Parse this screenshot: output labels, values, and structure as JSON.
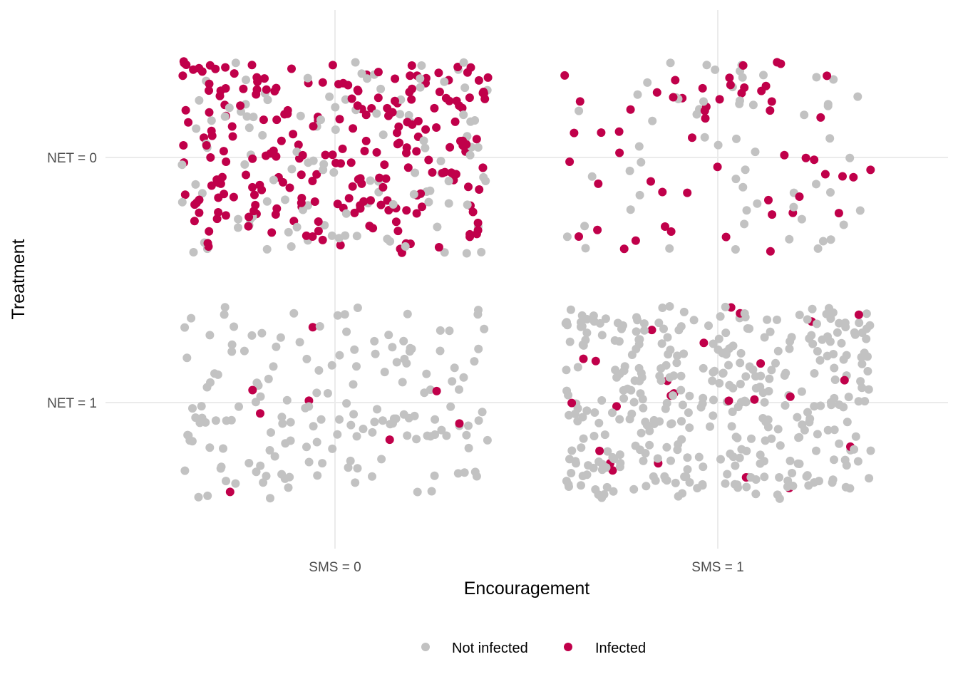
{
  "chart_data": {
    "type": "scatter",
    "title": "",
    "xlabel": "Encouragement",
    "ylabel": "Treatment",
    "x_categories": [
      "SMS = 0",
      "SMS = 1"
    ],
    "y_categories": [
      "NET = 0",
      "NET = 1"
    ],
    "jitter": true,
    "grid": "major",
    "legend": {
      "position": "bottom",
      "entries": [
        "Not infected",
        "Infected"
      ]
    },
    "colors": {
      "Not infected": "#c2c2c2",
      "Infected": "#c0004a"
    },
    "groups": [
      {
        "x": "SMS = 0",
        "y": "NET = 0",
        "not_infected": 123,
        "infected": 245
      },
      {
        "x": "SMS = 1",
        "y": "NET = 0",
        "not_infected": 60,
        "infected": 56
      },
      {
        "x": "SMS = 0",
        "y": "NET = 1",
        "not_infected": 168,
        "infected": 8
      },
      {
        "x": "SMS = 1",
        "y": "NET = 1",
        "not_infected": 375,
        "infected": 25
      }
    ]
  }
}
